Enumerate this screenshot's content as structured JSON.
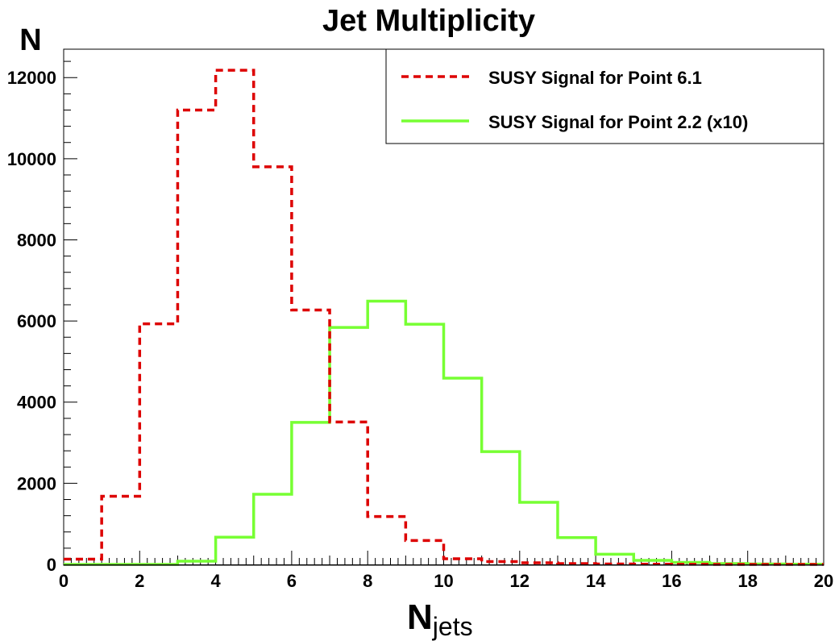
{
  "chart_data": {
    "type": "histogram",
    "title": "Jet Multiplicity",
    "ylabel": "N",
    "xlabel_main": "N",
    "xlabel_sub": "jets",
    "xlim": [
      0,
      20
    ],
    "ylim": [
      0,
      12700
    ],
    "xticks": [
      "0",
      "2",
      "4",
      "6",
      "8",
      "10",
      "12",
      "14",
      "16",
      "18",
      "20"
    ],
    "yticks": [
      "0",
      "2000",
      "4000",
      "6000",
      "8000",
      "10000",
      "12000"
    ],
    "bin_edges": [
      0,
      1,
      2,
      3,
      4,
      5,
      6,
      7,
      8,
      9,
      10,
      11,
      12,
      13,
      14,
      15,
      16,
      17,
      18,
      19,
      20
    ],
    "legend_position": "top-right",
    "series": [
      {
        "name": "SUSY Signal for Point 6.1",
        "color": "#dd0000",
        "style": "dashed",
        "values": [
          130,
          1680,
          5930,
          11200,
          12180,
          9800,
          6270,
          3510,
          1180,
          590,
          140,
          70,
          40,
          20,
          10,
          5,
          2,
          1,
          0,
          0
        ]
      },
      {
        "name": "SUSY Signal for Point 2.2 (x10)",
        "color": "#77ff33",
        "style": "solid",
        "values": [
          0,
          0,
          0,
          80,
          670,
          1730,
          3500,
          5840,
          6490,
          5920,
          4590,
          2780,
          1530,
          660,
          250,
          100,
          50,
          20,
          10,
          5
        ]
      }
    ]
  }
}
